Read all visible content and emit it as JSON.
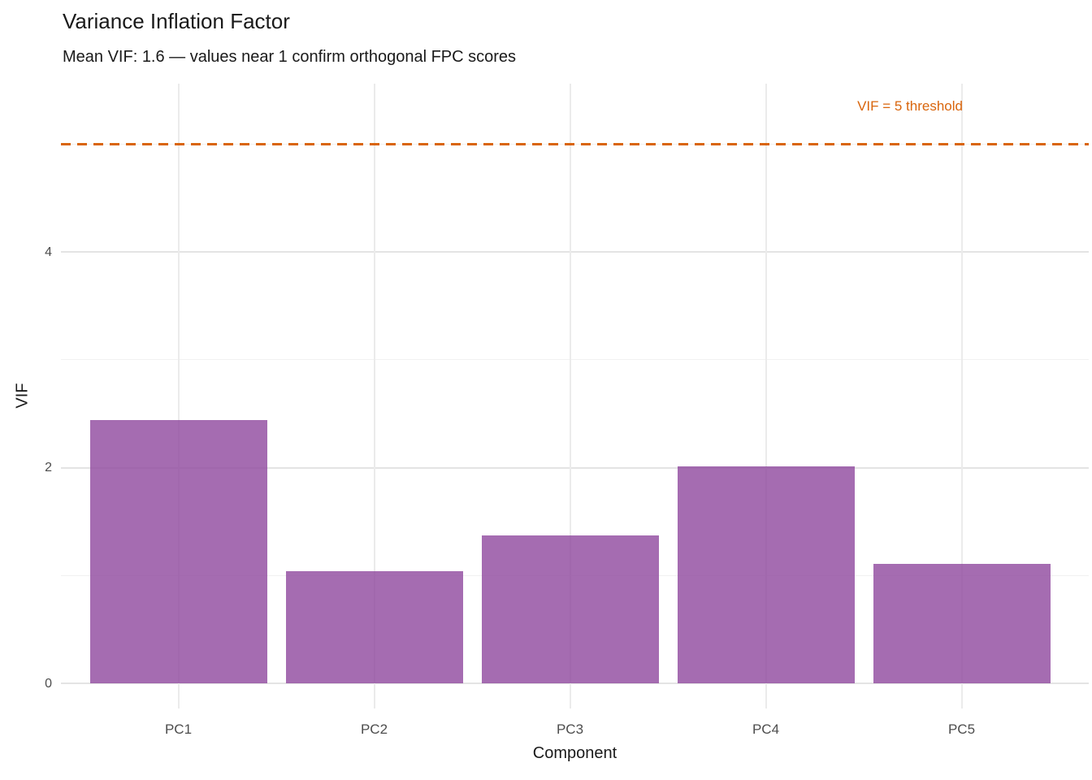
{
  "chart_data": {
    "type": "bar",
    "title": "Variance Inflation Factor",
    "subtitle": "Mean VIF: 1.6 — values near 1 confirm orthogonal FPC scores",
    "xlabel": "Component",
    "ylabel": "VIF",
    "categories": [
      "PC1",
      "PC2",
      "PC3",
      "PC4",
      "PC5"
    ],
    "values": [
      2.44,
      1.04,
      1.37,
      2.01,
      1.11
    ],
    "mean_vif": 1.6,
    "ylim": [
      0,
      5.55
    ],
    "y_major_ticks": [
      0,
      2,
      4
    ],
    "y_minor_gridlines": [
      1,
      3,
      5
    ],
    "grid": true,
    "legend": "none",
    "threshold": {
      "value": 5,
      "label": "VIF = 5 threshold"
    }
  },
  "colors": {
    "background": "#FFFFFF",
    "bar_fill": "#8E479E",
    "bar_alpha": 0.8,
    "threshold": "#D9650C",
    "grid_major": "#E4E4E4",
    "grid_minor": "#F1F1F1",
    "text_primary": "#1A1A1A",
    "text_ticks": "#4D4D4D"
  }
}
